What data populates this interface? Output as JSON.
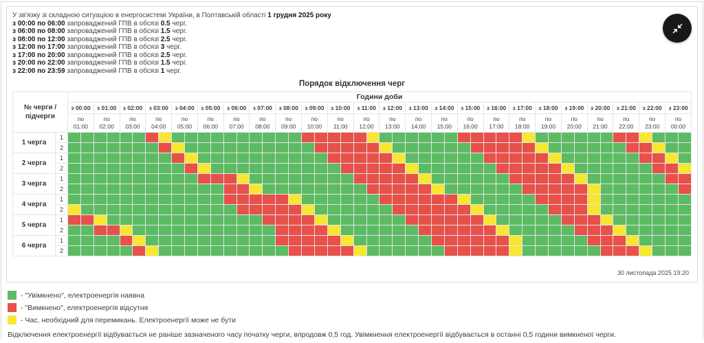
{
  "icons": {
    "collapse": "collapse-arrows-icon"
  },
  "intro": {
    "lead": "У зв'язку зі складною ситуацією в енергосистемі України, в Полтавській області",
    "lead_bold": "1 грудня 2025 року",
    "mid": "запроваджений ГПВ в обсязі",
    "tail": "черг.",
    "lines": [
      {
        "range": "з 00:00 по 06:00",
        "amount": "0.5"
      },
      {
        "range": "з 06:00 по 08:00",
        "amount": "1.5"
      },
      {
        "range": "з 08:00 по 12:00",
        "amount": "2.5"
      },
      {
        "range": "з 12:00 по 17:00",
        "amount": "3"
      },
      {
        "range": "з 17:00 по 20:00",
        "amount": "2.5"
      },
      {
        "range": "з 20:00 по 22:00",
        "amount": "1.5"
      },
      {
        "range": "з 22:00 по 23:59",
        "amount": "1"
      }
    ]
  },
  "table": {
    "title": "Порядок відключення черг",
    "hours_label": "Години доби",
    "corner_label": "№ черги / підчерги",
    "z_prefix": "з",
    "po_label": "по",
    "hours": [
      [
        "00:00",
        "01:00"
      ],
      [
        "01:00",
        "02:00"
      ],
      [
        "02:00",
        "03:00"
      ],
      [
        "03:00",
        "04:00"
      ],
      [
        "04:00",
        "05:00"
      ],
      [
        "05:00",
        "06:00"
      ],
      [
        "06:00",
        "07:00"
      ],
      [
        "07:00",
        "08:00"
      ],
      [
        "08:00",
        "09:00"
      ],
      [
        "09:00",
        "10:00"
      ],
      [
        "10:00",
        "11:00"
      ],
      [
        "11:00",
        "12:00"
      ],
      [
        "12:00",
        "13:00"
      ],
      [
        "13:00",
        "14:00"
      ],
      [
        "14:00",
        "15:00"
      ],
      [
        "15:00",
        "16:00"
      ],
      [
        "16:00",
        "17:00"
      ],
      [
        "17:00",
        "18:00"
      ],
      [
        "18:00",
        "19:00"
      ],
      [
        "19:00",
        "20:00"
      ],
      [
        "20:00",
        "21:00"
      ],
      [
        "21:00",
        "22:00"
      ],
      [
        "22:00",
        "23:00"
      ],
      [
        "23:00",
        "00:00"
      ]
    ],
    "timestamp": "30 листопада 2025 19:20"
  },
  "grid": {
    "colors": {
      "G": "#5dbb63",
      "R": "#e8504a",
      "Y": "#f7e733"
    },
    "queues": [
      {
        "label": "1 черга",
        "subs": [
          {
            "n": "1",
            "cells": "GGGGGGRYGGGGGGGGGGRRRRRYGGGGGGRRRRRYGGGGGGRRYGGG"
          },
          {
            "n": "2",
            "cells": "GGGGGGGRYGGGGGGGGGGRRRRRYGGGGGGRRRRRYGGGGGGRRYGG"
          }
        ]
      },
      {
        "label": "2 черга",
        "subs": [
          {
            "n": "1",
            "cells": "GGGGGGGGRYGGGGGGGGGGRRRRRYGGGGGGRRRRRYGGGGGGRRYG"
          },
          {
            "n": "2",
            "cells": "GGGGGGGGGRYGGGGGGGGGGRRRRRYGGGGGGRRRRRYGGGGGGRRY"
          }
        ]
      },
      {
        "label": "3 черга",
        "subs": [
          {
            "n": "1",
            "cells": "GGGGGGGGGGRRRYGGGGGGGGRRRRRYGGGGGGRRRRRYGGGGGGRR"
          },
          {
            "n": "2",
            "cells": "GGGGGGGGGGGGRRYGGGGGGGGRRRRRYGGGGGGRRRRRYGGGGGGR"
          }
        ]
      },
      {
        "label": "4 черга",
        "subs": [
          {
            "n": "1",
            "cells": "GGGGGGGGGGGGRRRRRYGGGGGGRRRRRRYGGGGGRRRRYGGGGGGG"
          },
          {
            "n": "2",
            "cells": "YGGGGGGGGGGGGRRRRRYGGGGGGRRRRRRYGGGGGRRRYGGGGGGG"
          }
        ]
      },
      {
        "label": "5 черга",
        "subs": [
          {
            "n": "1",
            "cells": "RRYGGGGGGGGGGGGRRRRYGGGGGGRRRRRRYGGGGGRRRYGGGGGG"
          },
          {
            "n": "2",
            "cells": "GGRRYGGGGGGGGGGGRRRRYGGGGGGRRRRRRYGGGGGRRRYGGGGG"
          }
        ]
      },
      {
        "label": "6 черга",
        "subs": [
          {
            "n": "1",
            "cells": "GGGGRYGGGGGGGGGGRRRRRYGGGGGGRRRRRRYGGGGGRRRYGGGG"
          },
          {
            "n": "2",
            "cells": "GGGGGRYGGGGGGGGGGRRRRRYGGGGGGRRRRRYGGGGGGRRRYGGG"
          }
        ]
      }
    ]
  },
  "legend": [
    {
      "key": "G",
      "text": "- \"Увімкнено\", електроенергія наявна"
    },
    {
      "key": "R",
      "text": "- \"Вимкнено\", електроенергія відсутня"
    },
    {
      "key": "Y",
      "text": "- Час, необхідний для перемикань. Електроенергії може не бути"
    }
  ],
  "note": "Відключення електроенергії відбувається не раніше зазначеного часу початку черги, впродовж 0,5 год. Увімкнення електроенергії відбувається в останні 0,5 години вимкненої черги."
}
